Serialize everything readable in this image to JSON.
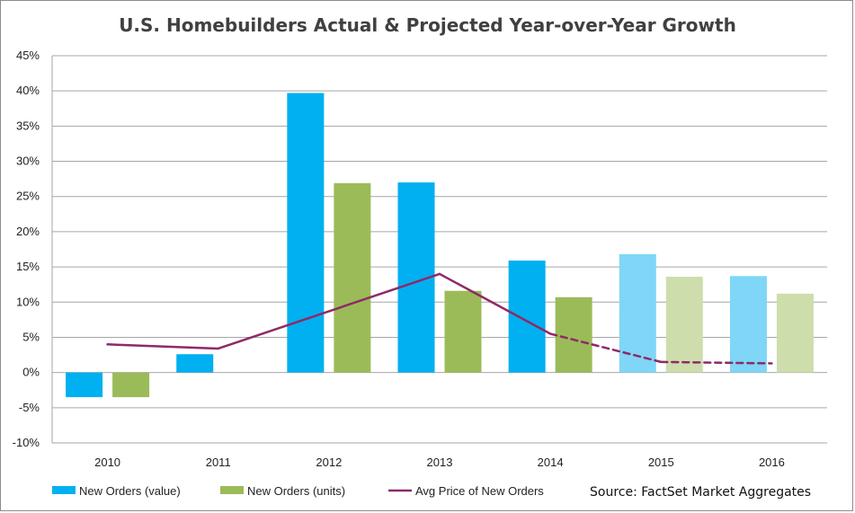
{
  "chart_data": {
    "type": "bar",
    "title": "U.S. Homebuilders Actual & Projected Year-over-Year Growth",
    "categories": [
      "2010",
      "2011",
      "2012",
      "2013",
      "2014",
      "2015",
      "2016"
    ],
    "y_ticks": [
      "45%",
      "40%",
      "35%",
      "30%",
      "25%",
      "20%",
      "15%",
      "10%",
      "5%",
      "0%",
      "-5%",
      "-10%"
    ],
    "ylim": [
      -10,
      45
    ],
    "grid": true,
    "legend_position": "bottom",
    "projected_from": "2015",
    "series": [
      {
        "name": "New Orders (value)",
        "kind": "bar",
        "color": "#00B0F0",
        "projected_color": "#7FD6F7",
        "values": [
          -3.5,
          2.6,
          39.7,
          27.0,
          15.9,
          16.8,
          13.7
        ]
      },
      {
        "name": "New Orders (units)",
        "kind": "bar",
        "color": "#9BBB59",
        "projected_color": "#CDDDAC",
        "values": [
          -3.5,
          null,
          26.9,
          11.6,
          10.7,
          13.6,
          11.2
        ]
      },
      {
        "name": "Avg Price of New Orders",
        "kind": "line",
        "color": "#8E2A66",
        "values": [
          4.0,
          3.4,
          null,
          14.0,
          5.5,
          1.5,
          1.3
        ]
      }
    ],
    "source": "Source: FactSet Market Aggregates"
  }
}
